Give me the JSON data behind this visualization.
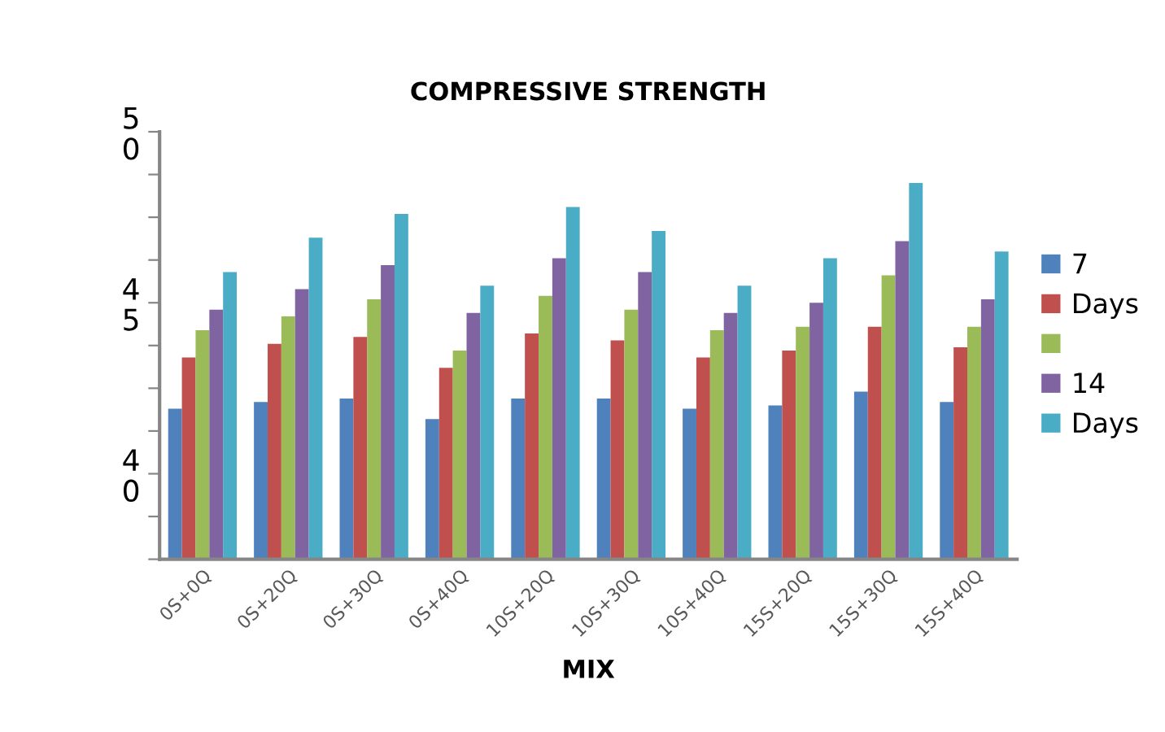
{
  "chart_data": {
    "type": "bar",
    "title": "COMPRESSIVE STRENGTH",
    "xlabel": "MIX",
    "categories": [
      "0S+0Q",
      "0S+20Q",
      "0S+30Q",
      "0S+40Q",
      "10S+20Q",
      "10S+30Q",
      "10S+40Q",
      "15S+20Q",
      "15S+30Q",
      "15S+40Q"
    ],
    "series": [
      {
        "name": "7",
        "color": "#4f81bd",
        "values": [
          41.9,
          42.1,
          42.2,
          41.6,
          42.2,
          42.2,
          41.9,
          42.0,
          42.4,
          42.1
        ]
      },
      {
        "name": "Days",
        "color": "#c0504d",
        "values": [
          43.4,
          43.8,
          44.0,
          43.1,
          44.1,
          43.9,
          43.4,
          43.6,
          44.3,
          43.7
        ]
      },
      {
        "color": "#9bbb59",
        "values": [
          44.2,
          44.6,
          45.1,
          43.6,
          45.2,
          44.8,
          44.2,
          44.3,
          45.8,
          44.3
        ]
      },
      {
        "name": "14",
        "color": "#8064a2",
        "values": [
          44.8,
          45.4,
          46.1,
          44.7,
          46.3,
          45.9,
          44.7,
          45.0,
          46.8,
          45.1
        ]
      },
      {
        "name": "Days",
        "color": "#4bacc6",
        "values": [
          45.9,
          46.9,
          47.6,
          45.5,
          47.8,
          47.1,
          45.5,
          46.3,
          48.5,
          46.5
        ]
      }
    ],
    "ylim": [
      37.5,
      50
    ],
    "yticks": [
      {
        "value": 37.5,
        "label": null
      },
      {
        "value": 38.75,
        "label": null
      },
      {
        "value": 40,
        "label": "40"
      },
      {
        "value": 41.25,
        "label": null
      },
      {
        "value": 42.5,
        "label": null
      },
      {
        "value": 43.75,
        "label": null
      },
      {
        "value": 45,
        "label": "45"
      },
      {
        "value": 46.25,
        "label": null
      },
      {
        "value": 47.5,
        "label": null
      },
      {
        "value": 48.75,
        "label": null
      },
      {
        "value": 50,
        "label": "50"
      }
    ],
    "grid": false,
    "legend": "right"
  }
}
